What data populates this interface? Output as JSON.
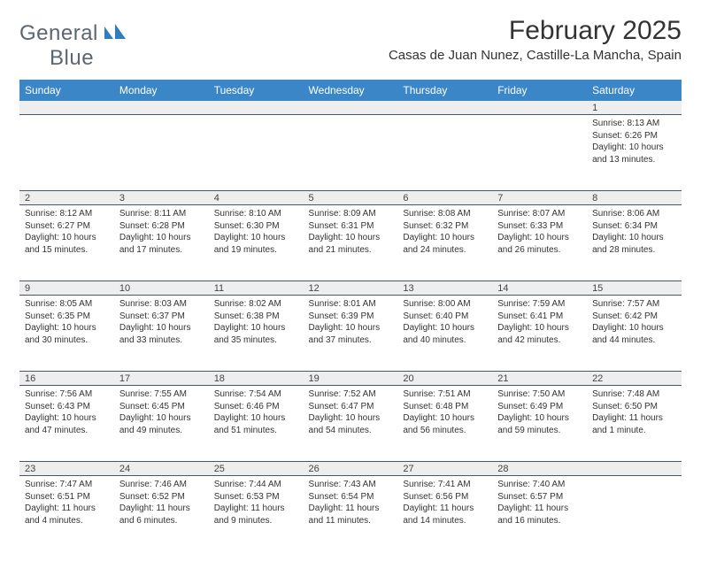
{
  "brand": {
    "word1": "General",
    "word2": "Blue",
    "logo_fill": "#2f7fbf",
    "text_color": "#5b6770"
  },
  "title": {
    "month": "February 2025",
    "location": "Casas de Juan Nunez, Castille-La Mancha, Spain",
    "title_fontsize": 30,
    "location_fontsize": 15
  },
  "colors": {
    "header_bg": "#3b86c6",
    "header_text": "#ffffff",
    "daynum_bg": "#eeeeee",
    "grid_line": "#4a5568",
    "body_text": "#333333",
    "page_bg": "#ffffff"
  },
  "weekdays": [
    "Sunday",
    "Monday",
    "Tuesday",
    "Wednesday",
    "Thursday",
    "Friday",
    "Saturday"
  ],
  "layout": {
    "first_weekday_index": 6,
    "days_in_month": 28,
    "columns": 7,
    "rows": 5
  },
  "labels": {
    "sunrise": "Sunrise:",
    "sunset": "Sunset:",
    "daylight": "Daylight:"
  },
  "days": {
    "1": {
      "sunrise": "8:13 AM",
      "sunset": "6:26 PM",
      "daylight": "10 hours and 13 minutes."
    },
    "2": {
      "sunrise": "8:12 AM",
      "sunset": "6:27 PM",
      "daylight": "10 hours and 15 minutes."
    },
    "3": {
      "sunrise": "8:11 AM",
      "sunset": "6:28 PM",
      "daylight": "10 hours and 17 minutes."
    },
    "4": {
      "sunrise": "8:10 AM",
      "sunset": "6:30 PM",
      "daylight": "10 hours and 19 minutes."
    },
    "5": {
      "sunrise": "8:09 AM",
      "sunset": "6:31 PM",
      "daylight": "10 hours and 21 minutes."
    },
    "6": {
      "sunrise": "8:08 AM",
      "sunset": "6:32 PM",
      "daylight": "10 hours and 24 minutes."
    },
    "7": {
      "sunrise": "8:07 AM",
      "sunset": "6:33 PM",
      "daylight": "10 hours and 26 minutes."
    },
    "8": {
      "sunrise": "8:06 AM",
      "sunset": "6:34 PM",
      "daylight": "10 hours and 28 minutes."
    },
    "9": {
      "sunrise": "8:05 AM",
      "sunset": "6:35 PM",
      "daylight": "10 hours and 30 minutes."
    },
    "10": {
      "sunrise": "8:03 AM",
      "sunset": "6:37 PM",
      "daylight": "10 hours and 33 minutes."
    },
    "11": {
      "sunrise": "8:02 AM",
      "sunset": "6:38 PM",
      "daylight": "10 hours and 35 minutes."
    },
    "12": {
      "sunrise": "8:01 AM",
      "sunset": "6:39 PM",
      "daylight": "10 hours and 37 minutes."
    },
    "13": {
      "sunrise": "8:00 AM",
      "sunset": "6:40 PM",
      "daylight": "10 hours and 40 minutes."
    },
    "14": {
      "sunrise": "7:59 AM",
      "sunset": "6:41 PM",
      "daylight": "10 hours and 42 minutes."
    },
    "15": {
      "sunrise": "7:57 AM",
      "sunset": "6:42 PM",
      "daylight": "10 hours and 44 minutes."
    },
    "16": {
      "sunrise": "7:56 AM",
      "sunset": "6:43 PM",
      "daylight": "10 hours and 47 minutes."
    },
    "17": {
      "sunrise": "7:55 AM",
      "sunset": "6:45 PM",
      "daylight": "10 hours and 49 minutes."
    },
    "18": {
      "sunrise": "7:54 AM",
      "sunset": "6:46 PM",
      "daylight": "10 hours and 51 minutes."
    },
    "19": {
      "sunrise": "7:52 AM",
      "sunset": "6:47 PM",
      "daylight": "10 hours and 54 minutes."
    },
    "20": {
      "sunrise": "7:51 AM",
      "sunset": "6:48 PM",
      "daylight": "10 hours and 56 minutes."
    },
    "21": {
      "sunrise": "7:50 AM",
      "sunset": "6:49 PM",
      "daylight": "10 hours and 59 minutes."
    },
    "22": {
      "sunrise": "7:48 AM",
      "sunset": "6:50 PM",
      "daylight": "11 hours and 1 minute."
    },
    "23": {
      "sunrise": "7:47 AM",
      "sunset": "6:51 PM",
      "daylight": "11 hours and 4 minutes."
    },
    "24": {
      "sunrise": "7:46 AM",
      "sunset": "6:52 PM",
      "daylight": "11 hours and 6 minutes."
    },
    "25": {
      "sunrise": "7:44 AM",
      "sunset": "6:53 PM",
      "daylight": "11 hours and 9 minutes."
    },
    "26": {
      "sunrise": "7:43 AM",
      "sunset": "6:54 PM",
      "daylight": "11 hours and 11 minutes."
    },
    "27": {
      "sunrise": "7:41 AM",
      "sunset": "6:56 PM",
      "daylight": "11 hours and 14 minutes."
    },
    "28": {
      "sunrise": "7:40 AM",
      "sunset": "6:57 PM",
      "daylight": "11 hours and 16 minutes."
    }
  }
}
